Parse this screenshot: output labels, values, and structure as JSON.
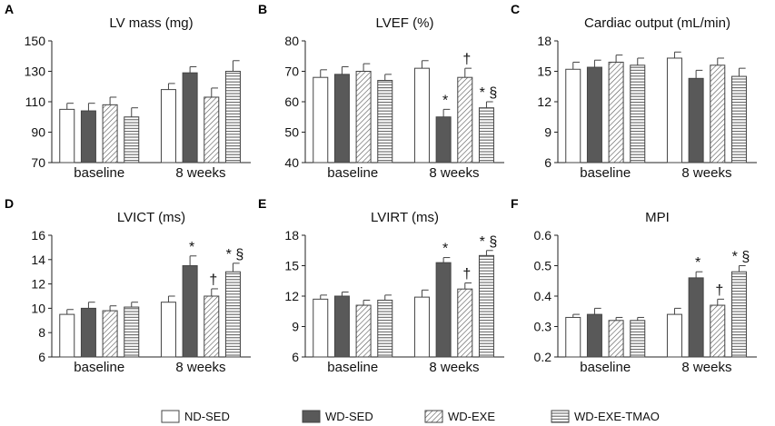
{
  "legend": [
    "ND-SED",
    "WD-SED",
    "WD-EXE",
    "WD-EXE-TMAO"
  ],
  "groups": [
    "baseline",
    "8 weeks"
  ],
  "chart_data": [
    {
      "panel": "A",
      "type": "bar",
      "title": "LV mass (mg)",
      "ylim": [
        70,
        150
      ],
      "yticks": [
        "70",
        "90",
        "110",
        "130",
        "150"
      ],
      "categories": [
        "baseline",
        "8 weeks"
      ],
      "series": [
        {
          "name": "ND-SED",
          "values": [
            105,
            118
          ],
          "errors": [
            4,
            4
          ]
        },
        {
          "name": "WD-SED",
          "values": [
            104,
            129
          ],
          "errors": [
            5,
            4
          ]
        },
        {
          "name": "WD-EXE",
          "values": [
            108,
            113
          ],
          "errors": [
            5,
            6
          ]
        },
        {
          "name": "WD-EXE-TMAO",
          "values": [
            100,
            130
          ],
          "errors": [
            6,
            7
          ]
        }
      ],
      "annotations": [
        [
          "",
          "",
          "",
          ""
        ],
        [
          "",
          "",
          "",
          ""
        ]
      ]
    },
    {
      "panel": "B",
      "type": "bar",
      "title": "LVEF (%)",
      "ylim": [
        40,
        80
      ],
      "yticks": [
        "40",
        "50",
        "60",
        "70",
        "80"
      ],
      "categories": [
        "baseline",
        "8 weeks"
      ],
      "series": [
        {
          "name": "ND-SED",
          "values": [
            68,
            71
          ],
          "errors": [
            2.5,
            2.5
          ]
        },
        {
          "name": "WD-SED",
          "values": [
            69,
            55
          ],
          "errors": [
            2.5,
            2.5
          ]
        },
        {
          "name": "WD-EXE",
          "values": [
            70,
            68
          ],
          "errors": [
            2.5,
            3
          ]
        },
        {
          "name": "WD-EXE-TMAO",
          "values": [
            67,
            58
          ],
          "errors": [
            2,
            2
          ]
        }
      ],
      "annotations": [
        [
          "",
          "",
          "",
          ""
        ],
        [
          "",
          "*",
          "†",
          "* §"
        ]
      ]
    },
    {
      "panel": "C",
      "type": "bar",
      "title": "Cardiac output  (mL/min)",
      "ylim": [
        6,
        18
      ],
      "yticks": [
        "6",
        "9",
        "12",
        "15",
        "18"
      ],
      "categories": [
        "baseline",
        "8 weeks"
      ],
      "series": [
        {
          "name": "ND-SED",
          "values": [
            15.2,
            16.3
          ],
          "errors": [
            0.7,
            0.6
          ]
        },
        {
          "name": "WD-SED",
          "values": [
            15.4,
            14.3
          ],
          "errors": [
            0.7,
            0.8
          ]
        },
        {
          "name": "WD-EXE",
          "values": [
            15.9,
            15.6
          ],
          "errors": [
            0.7,
            0.7
          ]
        },
        {
          "name": "WD-EXE-TMAO",
          "values": [
            15.6,
            14.5
          ],
          "errors": [
            0.7,
            0.8
          ]
        }
      ],
      "annotations": [
        [
          "",
          "",
          "",
          ""
        ],
        [
          "",
          "",
          "",
          ""
        ]
      ]
    },
    {
      "panel": "D",
      "type": "bar",
      "title": "LVICT (ms)",
      "ylim": [
        6,
        16
      ],
      "yticks": [
        "6",
        "8",
        "10",
        "12",
        "14",
        "16"
      ],
      "categories": [
        "baseline",
        "8 weeks"
      ],
      "series": [
        {
          "name": "ND-SED",
          "values": [
            9.5,
            10.5
          ],
          "errors": [
            0.4,
            0.5
          ]
        },
        {
          "name": "WD-SED",
          "values": [
            10.0,
            13.5
          ],
          "errors": [
            0.5,
            0.8
          ]
        },
        {
          "name": "WD-EXE",
          "values": [
            9.8,
            11.0
          ],
          "errors": [
            0.4,
            0.6
          ]
        },
        {
          "name": "WD-EXE-TMAO",
          "values": [
            10.1,
            13.0
          ],
          "errors": [
            0.4,
            0.7
          ]
        }
      ],
      "annotations": [
        [
          "",
          "",
          "",
          ""
        ],
        [
          "",
          "*",
          "†",
          "* §"
        ]
      ]
    },
    {
      "panel": "E",
      "type": "bar",
      "title": "LVIRT (ms)",
      "ylim": [
        6,
        18
      ],
      "yticks": [
        "6",
        "9",
        "12",
        "15",
        "18"
      ],
      "categories": [
        "baseline",
        "8 weeks"
      ],
      "series": [
        {
          "name": "ND-SED",
          "values": [
            11.7,
            11.9
          ],
          "errors": [
            0.4,
            0.7
          ]
        },
        {
          "name": "WD-SED",
          "values": [
            12.0,
            15.3
          ],
          "errors": [
            0.4,
            0.5
          ]
        },
        {
          "name": "WD-EXE",
          "values": [
            11.1,
            12.7
          ],
          "errors": [
            0.5,
            0.6
          ]
        },
        {
          "name": "WD-EXE-TMAO",
          "values": [
            11.6,
            16.0
          ],
          "errors": [
            0.5,
            0.5
          ]
        }
      ],
      "annotations": [
        [
          "",
          "",
          "",
          ""
        ],
        [
          "",
          "*",
          "†",
          "* §"
        ]
      ]
    },
    {
      "panel": "F",
      "type": "bar",
      "title": "MPI",
      "ylim": [
        0.2,
        0.6
      ],
      "yticks": [
        "0.2",
        "0.3",
        "0.4",
        "0.5",
        "0.6"
      ],
      "categories": [
        "baseline",
        "8 weeks"
      ],
      "series": [
        {
          "name": "ND-SED",
          "values": [
            0.33,
            0.34
          ],
          "errors": [
            0.01,
            0.02
          ]
        },
        {
          "name": "WD-SED",
          "values": [
            0.34,
            0.46
          ],
          "errors": [
            0.02,
            0.02
          ]
        },
        {
          "name": "WD-EXE",
          "values": [
            0.32,
            0.37
          ],
          "errors": [
            0.01,
            0.02
          ]
        },
        {
          "name": "WD-EXE-TMAO",
          "values": [
            0.32,
            0.48
          ],
          "errors": [
            0.01,
            0.02
          ]
        }
      ],
      "annotations": [
        [
          "",
          "",
          "",
          ""
        ],
        [
          "",
          "*",
          "†",
          "* §"
        ]
      ]
    }
  ]
}
